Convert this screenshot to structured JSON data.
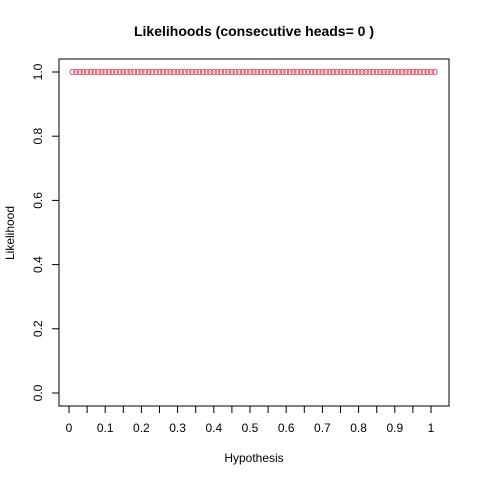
{
  "chart_data": {
    "type": "scatter",
    "title": "Likelihoods (consecutive heads= 0 )",
    "xlabel": "Hypothesis",
    "ylabel": "Likelihood",
    "xlim": [
      0,
      1
    ],
    "ylim": [
      0,
      1
    ],
    "x_ticks": [
      0,
      0.05,
      0.1,
      0.15,
      0.2,
      0.25,
      0.3,
      0.35,
      0.4,
      0.45,
      0.5,
      0.55,
      0.6,
      0.65,
      0.7,
      0.75,
      0.8,
      0.85,
      0.9,
      0.95,
      1
    ],
    "x_tick_labels": [
      "0",
      "",
      "0.1",
      "",
      "0.2",
      "",
      "0.3",
      "",
      "0.4",
      "",
      "0.5",
      "",
      "0.6",
      "",
      "0.7",
      "",
      "0.8",
      "",
      "0.9",
      "",
      "1"
    ],
    "y_ticks": [
      0,
      0.2,
      0.4,
      0.6,
      0.8,
      1
    ],
    "y_tick_labels": [
      "0.0",
      "0.2",
      "0.4",
      "0.6",
      "0.8",
      "1.0"
    ],
    "grid": false,
    "marker": "open-circle",
    "marker_color": "#DF536B",
    "series": [
      {
        "x": [
          0.01,
          0.02,
          0.03,
          0.04,
          0.05,
          0.06,
          0.07,
          0.08,
          0.09,
          0.1,
          0.11,
          0.12,
          0.13,
          0.14,
          0.15,
          0.16,
          0.17,
          0.18,
          0.19,
          0.2,
          0.21,
          0.22,
          0.23,
          0.24,
          0.25,
          0.26,
          0.27,
          0.28,
          0.29,
          0.3,
          0.31,
          0.32,
          0.33,
          0.34,
          0.35,
          0.36,
          0.37,
          0.38,
          0.39,
          0.4,
          0.41,
          0.42,
          0.43,
          0.44,
          0.45,
          0.46,
          0.47,
          0.48,
          0.49,
          0.5,
          0.51,
          0.52,
          0.53,
          0.54,
          0.55,
          0.56,
          0.57,
          0.58,
          0.59,
          0.6,
          0.61,
          0.62,
          0.63,
          0.64,
          0.65,
          0.66,
          0.67,
          0.68,
          0.69,
          0.7,
          0.71,
          0.72,
          0.73,
          0.74,
          0.75,
          0.76,
          0.77,
          0.78,
          0.79,
          0.8,
          0.81,
          0.82,
          0.83,
          0.84,
          0.85,
          0.86,
          0.87,
          0.88,
          0.89,
          0.9,
          0.91,
          0.92,
          0.93,
          0.94,
          0.95,
          0.96,
          0.97,
          0.98,
          0.99,
          1.0,
          1.01
        ],
        "y": [
          1,
          1,
          1,
          1,
          1,
          1,
          1,
          1,
          1,
          1,
          1,
          1,
          1,
          1,
          1,
          1,
          1,
          1,
          1,
          1,
          1,
          1,
          1,
          1,
          1,
          1,
          1,
          1,
          1,
          1,
          1,
          1,
          1,
          1,
          1,
          1,
          1,
          1,
          1,
          1,
          1,
          1,
          1,
          1,
          1,
          1,
          1,
          1,
          1,
          1,
          1,
          1,
          1,
          1,
          1,
          1,
          1,
          1,
          1,
          1,
          1,
          1,
          1,
          1,
          1,
          1,
          1,
          1,
          1,
          1,
          1,
          1,
          1,
          1,
          1,
          1,
          1,
          1,
          1,
          1,
          1,
          1,
          1,
          1,
          1,
          1,
          1,
          1,
          1,
          1,
          1,
          1,
          1,
          1,
          1,
          1,
          1,
          1,
          1,
          1,
          1
        ]
      }
    ]
  }
}
